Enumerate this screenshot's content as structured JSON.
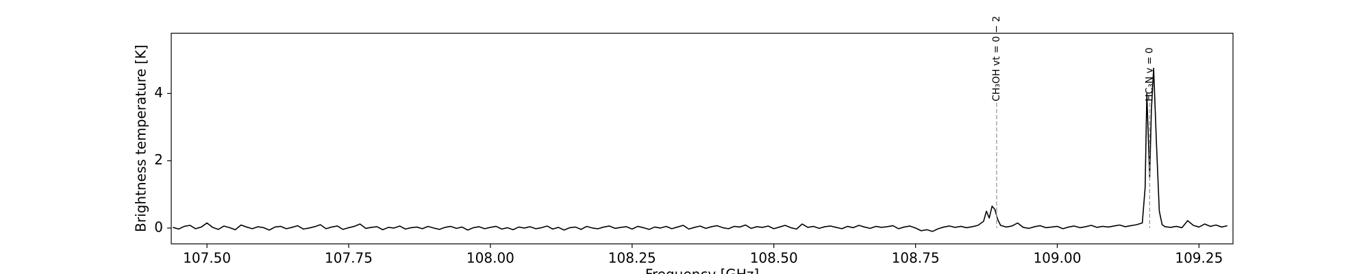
{
  "chart_data": {
    "type": "line",
    "xlabel": "Frequency [GHz]",
    "ylabel": "Brightness temperature [K]",
    "color": "#000000",
    "xlim": [
      107.437,
      109.31
    ],
    "ylim": [
      -0.47,
      5.79
    ],
    "xticks": [
      {
        "value": 107.5,
        "label": "107.50"
      },
      {
        "value": 107.75,
        "label": "107.75"
      },
      {
        "value": 108.0,
        "label": "108.00"
      },
      {
        "value": 108.25,
        "label": "108.25"
      },
      {
        "value": 108.5,
        "label": "108.50"
      },
      {
        "value": 108.75,
        "label": "108.75"
      },
      {
        "value": 109.0,
        "label": "109.00"
      },
      {
        "value": 109.25,
        "label": "109.25"
      }
    ],
    "yticks": [
      0,
      2,
      4
    ],
    "annotations": [
      {
        "text": "CH₃OH vt = 0 − 2",
        "x": 108.893
      },
      {
        "text": "HC₃N v = 0",
        "x": 109.163
      }
    ],
    "x": [
      107.44,
      107.45,
      107.46,
      107.47,
      107.48,
      107.49,
      107.5,
      107.51,
      107.52,
      107.53,
      107.54,
      107.55,
      107.56,
      107.57,
      107.58,
      107.59,
      107.6,
      107.61,
      107.62,
      107.63,
      107.64,
      107.65,
      107.66,
      107.67,
      107.68,
      107.69,
      107.7,
      107.71,
      107.72,
      107.73,
      107.74,
      107.75,
      107.76,
      107.77,
      107.78,
      107.79,
      107.8,
      107.81,
      107.82,
      107.83,
      107.84,
      107.85,
      107.86,
      107.87,
      107.88,
      107.89,
      107.9,
      107.91,
      107.92,
      107.93,
      107.94,
      107.95,
      107.96,
      107.97,
      107.98,
      107.99,
      108.0,
      108.01,
      108.02,
      108.03,
      108.04,
      108.05,
      108.06,
      108.07,
      108.08,
      108.09,
      108.1,
      108.11,
      108.12,
      108.13,
      108.14,
      108.15,
      108.16,
      108.17,
      108.18,
      108.19,
      108.2,
      108.21,
      108.22,
      108.23,
      108.24,
      108.25,
      108.26,
      108.27,
      108.28,
      108.29,
      108.3,
      108.31,
      108.32,
      108.33,
      108.34,
      108.35,
      108.36,
      108.37,
      108.38,
      108.39,
      108.4,
      108.41,
      108.42,
      108.43,
      108.44,
      108.45,
      108.46,
      108.47,
      108.48,
      108.49,
      108.5,
      108.51,
      108.52,
      108.53,
      108.54,
      108.55,
      108.56,
      108.57,
      108.58,
      108.59,
      108.6,
      108.61,
      108.62,
      108.63,
      108.64,
      108.65,
      108.66,
      108.67,
      108.68,
      108.69,
      108.7,
      108.71,
      108.72,
      108.73,
      108.74,
      108.75,
      108.76,
      108.77,
      108.78,
      108.79,
      108.8,
      108.81,
      108.82,
      108.83,
      108.84,
      108.85,
      108.86,
      108.87,
      108.875,
      108.88,
      108.885,
      108.89,
      108.895,
      108.9,
      108.91,
      108.92,
      108.93,
      108.94,
      108.95,
      108.96,
      108.97,
      108.98,
      108.99,
      109.0,
      109.01,
      109.02,
      109.03,
      109.04,
      109.05,
      109.06,
      109.07,
      109.08,
      109.09,
      109.1,
      109.11,
      109.12,
      109.13,
      109.14,
      109.15,
      109.155,
      109.158,
      109.163,
      109.166,
      109.17,
      109.175,
      109.18,
      109.185,
      109.19,
      109.2,
      109.21,
      109.22,
      109.23,
      109.24,
      109.25,
      109.26,
      109.27,
      109.28,
      109.29,
      109.3
    ],
    "values": [
      0.02,
      -0.03,
      0.05,
      0.08,
      -0.02,
      0.03,
      0.15,
      0.02,
      -0.04,
      0.06,
      0.01,
      -0.05,
      0.09,
      0.03,
      -0.02,
      0.04,
      0.01,
      -0.06,
      0.03,
      0.05,
      -0.02,
      0.02,
      0.07,
      -0.03,
      0.0,
      0.04,
      0.1,
      -0.02,
      0.03,
      0.06,
      -0.04,
      0.01,
      0.05,
      0.12,
      -0.01,
      0.02,
      0.04,
      -0.05,
      0.02,
      0.0,
      0.06,
      -0.03,
      0.01,
      0.03,
      -0.02,
      0.05,
      0.0,
      -0.04,
      0.02,
      0.05,
      -0.01,
      0.03,
      -0.06,
      0.01,
      0.04,
      -0.02,
      0.02,
      0.05,
      -0.03,
      0.01,
      -0.05,
      0.03,
      0.0,
      0.04,
      -0.02,
      0.01,
      0.06,
      -0.03,
      0.02,
      -0.06,
      0.01,
      0.03,
      -0.04,
      0.05,
      0.0,
      -0.02,
      0.03,
      0.06,
      -0.01,
      0.02,
      0.04,
      -0.03,
      0.05,
      0.01,
      -0.04,
      0.03,
      0.0,
      0.05,
      -0.02,
      0.03,
      0.08,
      -0.03,
      0.02,
      0.06,
      -0.01,
      0.04,
      0.07,
      0.01,
      -0.02,
      0.05,
      0.03,
      0.09,
      -0.01,
      0.04,
      0.02,
      0.06,
      -0.02,
      0.03,
      0.08,
      0.01,
      -0.03,
      0.12,
      0.02,
      0.05,
      -0.01,
      0.04,
      0.06,
      0.02,
      -0.02,
      0.05,
      0.01,
      0.08,
      0.03,
      -0.01,
      0.05,
      0.02,
      0.04,
      0.07,
      -0.02,
      0.03,
      0.06,
      0.0,
      -0.08,
      -0.05,
      -0.1,
      -0.02,
      0.03,
      0.06,
      0.02,
      0.05,
      0.01,
      0.04,
      0.08,
      0.2,
      0.5,
      0.3,
      0.65,
      0.55,
      0.25,
      0.08,
      0.03,
      0.06,
      0.15,
      0.02,
      -0.01,
      0.04,
      0.07,
      0.01,
      0.03,
      0.05,
      -0.02,
      0.03,
      0.06,
      0.01,
      0.04,
      0.08,
      0.02,
      0.05,
      0.03,
      0.06,
      0.09,
      0.04,
      0.07,
      0.1,
      0.15,
      1.2,
      4.0,
      1.5,
      3.5,
      4.75,
      2.5,
      0.5,
      0.1,
      0.04,
      0.02,
      0.05,
      0.01,
      0.22,
      0.08,
      0.03,
      0.12,
      0.05,
      0.09,
      0.03,
      0.07
    ]
  }
}
